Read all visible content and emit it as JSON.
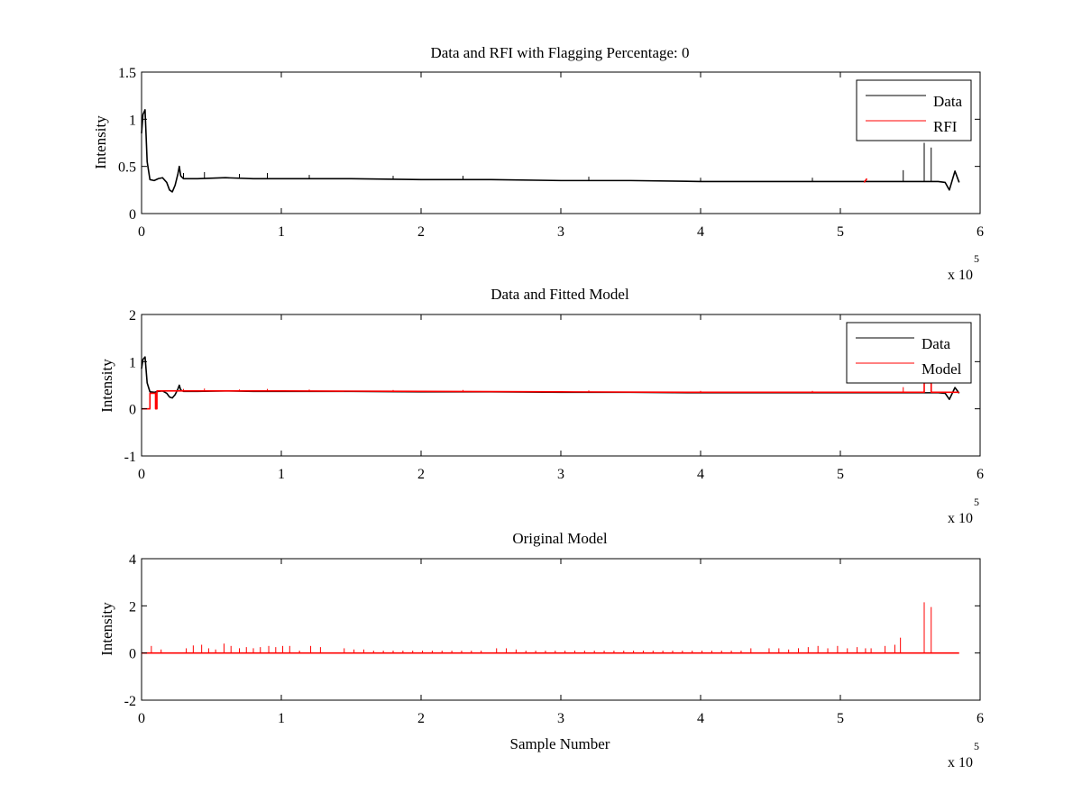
{
  "colors": {
    "data": "#000000",
    "model": "#ff0000",
    "axes": "#000000",
    "background": "#ffffff"
  },
  "chart_data": [
    {
      "type": "line",
      "title": "Data and RFI with Flagging Percentage: 0",
      "xlabel": "",
      "ylabel": "Intensity",
      "xlim": [
        0,
        600000
      ],
      "ylim": [
        0,
        1.5
      ],
      "xticks": [
        "0",
        "1",
        "2",
        "3",
        "4",
        "5",
        "6"
      ],
      "yticks": [
        "0",
        "0.5",
        "1",
        "1.5"
      ],
      "x_multiplier": {
        "base": "x 10",
        "exponent": "5"
      },
      "grid": false,
      "legend_position": "top-right",
      "legend": [
        "Data",
        "RFI"
      ],
      "series": [
        {
          "name": "Data",
          "color": "#000000",
          "x": [
            0,
            1000,
            2500,
            4000,
            6000,
            9000,
            12000,
            15000,
            18000,
            20000,
            22000,
            24000,
            26000,
            27000,
            28000,
            30000,
            40000,
            60000,
            80000,
            100000,
            150000,
            200000,
            250000,
            300000,
            350000,
            400000,
            450000,
            500000,
            550000,
            560000,
            565000,
            570000,
            575000,
            578000,
            582000,
            585000
          ],
          "y": [
            0.85,
            1.05,
            1.1,
            0.55,
            0.36,
            0.35,
            0.37,
            0.38,
            0.33,
            0.25,
            0.23,
            0.3,
            0.42,
            0.5,
            0.4,
            0.37,
            0.37,
            0.38,
            0.37,
            0.37,
            0.37,
            0.36,
            0.36,
            0.35,
            0.35,
            0.34,
            0.34,
            0.34,
            0.34,
            0.34,
            0.34,
            0.34,
            0.33,
            0.25,
            0.45,
            0.33
          ]
        },
        {
          "name": "RFI",
          "color": "#ff0000",
          "x": [
            517000,
            519000
          ],
          "y": [
            0.33,
            0.37
          ]
        }
      ],
      "spikes": [
        {
          "name": "Data",
          "x": [
            30000,
            45000,
            70000,
            90000,
            120000,
            180000,
            230000,
            320000,
            400000,
            480000,
            545000,
            560000,
            565000
          ],
          "y": [
            0.43,
            0.44,
            0.42,
            0.43,
            0.41,
            0.4,
            0.4,
            0.39,
            0.38,
            0.38,
            0.46,
            0.75,
            0.7
          ]
        }
      ]
    },
    {
      "type": "line",
      "title": "Data and Fitted Model",
      "xlabel": "",
      "ylabel": "Intensity",
      "xlim": [
        0,
        600000
      ],
      "ylim": [
        -1,
        2
      ],
      "xticks": [
        "0",
        "1",
        "2",
        "3",
        "4",
        "5",
        "6"
      ],
      "yticks": [
        "-1",
        "0",
        "1",
        "2"
      ],
      "x_multiplier": {
        "base": "x 10",
        "exponent": "5"
      },
      "grid": false,
      "legend_position": "top-right",
      "legend": [
        "Data",
        "Model"
      ],
      "series": [
        {
          "name": "Data",
          "color": "#000000",
          "x": [
            0,
            1000,
            2500,
            4000,
            6000,
            9000,
            12000,
            15000,
            18000,
            20000,
            22000,
            24000,
            26000,
            27000,
            28000,
            30000,
            40000,
            60000,
            80000,
            100000,
            150000,
            200000,
            250000,
            300000,
            350000,
            400000,
            450000,
            500000,
            550000,
            560000,
            565000,
            570000,
            575000,
            578000,
            582000,
            585000
          ],
          "y": [
            0.85,
            1.05,
            1.1,
            0.55,
            0.36,
            0.35,
            0.37,
            0.38,
            0.33,
            0.25,
            0.23,
            0.3,
            0.42,
            0.5,
            0.4,
            0.37,
            0.37,
            0.38,
            0.37,
            0.37,
            0.37,
            0.36,
            0.36,
            0.35,
            0.35,
            0.34,
            0.34,
            0.34,
            0.34,
            0.34,
            0.34,
            0.34,
            0.33,
            0.2,
            0.45,
            0.33
          ]
        },
        {
          "name": "Model",
          "color": "#ff0000",
          "x": [
            0,
            6000,
            6000,
            10000,
            10000,
            11000,
            11000,
            40000,
            100000,
            200000,
            300000,
            400000,
            500000,
            560000,
            560000,
            565000,
            565000,
            585000
          ],
          "y": [
            0,
            0,
            0.33,
            0.33,
            0,
            0,
            0.38,
            0.38,
            0.38,
            0.37,
            0.36,
            0.35,
            0.35,
            0.35,
            0.55,
            0.55,
            0.35,
            0.35
          ]
        }
      ],
      "spikes": [
        {
          "name": "Model",
          "x": [
            30000,
            45000,
            70000,
            90000,
            120000,
            180000,
            230000,
            320000,
            400000,
            480000,
            545000
          ],
          "y": [
            0.42,
            0.43,
            0.41,
            0.42,
            0.41,
            0.4,
            0.4,
            0.39,
            0.38,
            0.38,
            0.46
          ]
        }
      ]
    },
    {
      "type": "line",
      "title": "Original Model",
      "xlabel": "Sample Number",
      "ylabel": "Intensity",
      "xlim": [
        0,
        600000
      ],
      "ylim": [
        -2,
        4
      ],
      "xticks": [
        "0",
        "1",
        "2",
        "3",
        "4",
        "5",
        "6"
      ],
      "yticks": [
        "-2",
        "0",
        "2",
        "4"
      ],
      "x_multiplier": {
        "base": "x 10",
        "exponent": "5"
      },
      "grid": false,
      "legend_position": "none",
      "legend": [],
      "series": [
        {
          "name": "Original Model",
          "color": "#ff0000",
          "x": [
            0,
            585000
          ],
          "y": [
            0,
            0
          ]
        }
      ],
      "spikes": [
        {
          "name": "Original Model",
          "x": [
            7000,
            14000,
            32000,
            37000,
            43000,
            48000,
            53000,
            59000,
            64000,
            70000,
            75000,
            80000,
            85000,
            91000,
            96000,
            101000,
            106000,
            113000,
            121000,
            128000,
            145000,
            152000,
            159000,
            166000,
            173000,
            180000,
            187000,
            194000,
            201000,
            208000,
            215000,
            222000,
            229000,
            236000,
            243000,
            254000,
            261000,
            268000,
            275000,
            282000,
            289000,
            296000,
            303000,
            310000,
            317000,
            324000,
            331000,
            338000,
            345000,
            352000,
            359000,
            366000,
            373000,
            380000,
            387000,
            394000,
            401000,
            408000,
            415000,
            422000,
            429000,
            436000,
            449000,
            456000,
            463000,
            470000,
            477000,
            484000,
            491000,
            498000,
            505000,
            512000,
            518000,
            522000,
            532000,
            539000,
            543000,
            560000,
            565000
          ],
          "y": [
            0.3,
            0.15,
            0.2,
            0.32,
            0.35,
            0.2,
            0.15,
            0.4,
            0.3,
            0.2,
            0.25,
            0.2,
            0.25,
            0.3,
            0.25,
            0.3,
            0.3,
            0.1,
            0.3,
            0.25,
            0.2,
            0.15,
            0.15,
            0.1,
            0.1,
            0.1,
            0.1,
            0.1,
            0.1,
            0.1,
            0.1,
            0.1,
            0.1,
            0.1,
            0.1,
            0.2,
            0.2,
            0.15,
            0.1,
            0.1,
            0.1,
            0.1,
            0.1,
            0.1,
            0.1,
            0.1,
            0.1,
            0.1,
            0.1,
            0.1,
            0.1,
            0.1,
            0.1,
            0.1,
            0.1,
            0.1,
            0.1,
            0.1,
            0.1,
            0.1,
            0.1,
            0.2,
            0.2,
            0.2,
            0.15,
            0.2,
            0.25,
            0.3,
            0.2,
            0.3,
            0.2,
            0.25,
            0.2,
            0.2,
            0.3,
            0.35,
            0.65,
            2.15,
            1.95
          ]
        }
      ]
    }
  ]
}
